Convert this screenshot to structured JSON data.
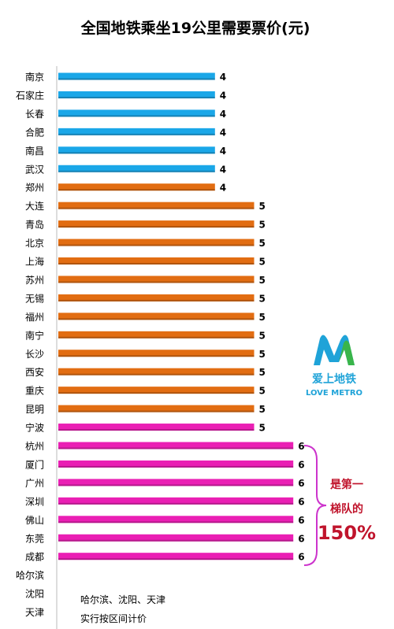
{
  "chart_data": {
    "type": "bar",
    "orientation": "horizontal",
    "title": "全国地铁乘坐19公里需要票价(元)",
    "categories": [
      "南京",
      "石家庄",
      "长春",
      "合肥",
      "南昌",
      "武汉",
      "郑州",
      "大连",
      "青岛",
      "北京",
      "上海",
      "苏州",
      "无锡",
      "福州",
      "南宁",
      "长沙",
      "西安",
      "重庆",
      "昆明",
      "宁波",
      "杭州",
      "厦门",
      "广州",
      "深圳",
      "佛山",
      "东莞",
      "成都",
      "哈尔滨",
      "沈阳",
      "天津"
    ],
    "values": [
      4,
      4,
      4,
      4,
      4,
      4,
      4,
      5,
      5,
      5,
      5,
      5,
      5,
      5,
      5,
      5,
      5,
      5,
      5,
      5,
      6,
      6,
      6,
      6,
      6,
      6,
      6,
      null,
      null,
      null
    ],
    "bar_colors": [
      "#1aa7e8",
      "#1aa7e8",
      "#1aa7e8",
      "#1aa7e8",
      "#1aa7e8",
      "#1aa7e8",
      "#e26d12",
      "#e26d12",
      "#e26d12",
      "#e26d12",
      "#e26d12",
      "#e26d12",
      "#e26d12",
      "#e26d12",
      "#e26d12",
      "#e26d12",
      "#e26d12",
      "#e26d12",
      "#e26d12",
      "#ea1fb4",
      "#ea1fb4",
      "#ea1fb4",
      "#ea1fb4",
      "#ea1fb4",
      "#ea1fb4",
      "#ea1fb4",
      "#ea1fb4",
      null,
      null,
      null
    ],
    "annotations": {
      "top_tier_note": [
        "是第一",
        "梯队的"
      ],
      "top_tier_percent": "150%",
      "bracket_color": "#cc33cc",
      "footnote": [
        "哈尔滨、沈阳、天津",
        "实行按区间计价"
      ]
    },
    "logo": {
      "name": "metro-logo",
      "text_cn": "爱上地铁",
      "text_en": "LOVE METRO",
      "colors": [
        "#1fa3d8",
        "#39b54a"
      ]
    }
  }
}
